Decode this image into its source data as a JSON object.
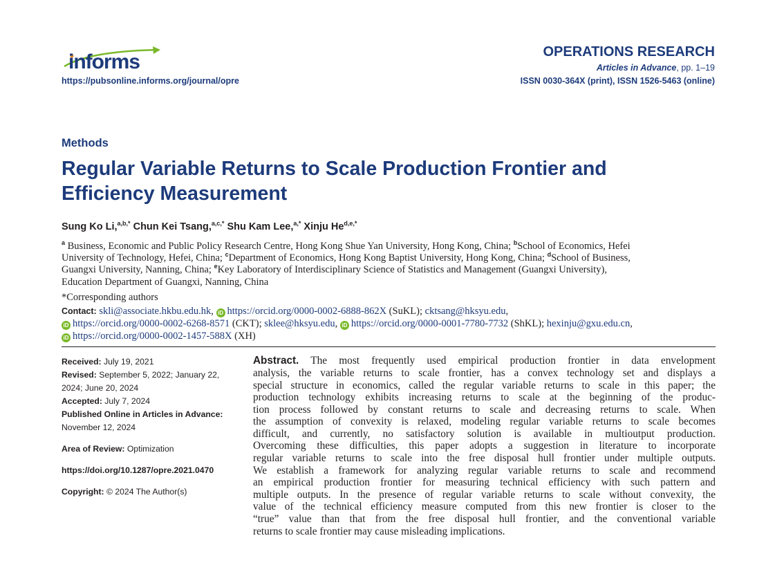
{
  "header": {
    "logo_text": "informs",
    "journal_url": "https://pubsonline.informs.org/journal/opre",
    "journal_name": "OPERATIONS RESEARCH",
    "articles_in_advance": "Articles in Advance",
    "pages": ", pp. 1–19",
    "issn": "ISSN 0030-364X (print), ISSN 1526-5463 (online)"
  },
  "colors": {
    "navy": "#1d3b7b",
    "orcid_green": "#7ab929",
    "logo_arrow": "#7ab929",
    "logo_dot": "#f08a24"
  },
  "article": {
    "section": "Methods",
    "title_line1": "Regular Variable Returns to Scale Production Frontier and",
    "title_line2": "Efficiency Measurement",
    "authors": [
      {
        "name": "Sung Ko Li,",
        "sup": "a,b,*"
      },
      {
        "name": "Chun Kei Tsang,",
        "sup": "a,c,*"
      },
      {
        "name": "Shu Kam Lee,",
        "sup": "a,*"
      },
      {
        "name": "Xinju He",
        "sup": "d,e,*"
      }
    ],
    "affiliations": {
      "a": "Business, Economic and Public Policy Research Centre, Hong Kong Shue Yan University, Hong Kong, China;",
      "b": "School of Economics, Hefei",
      "b2": "University of Technology, Hefei, China;",
      "c": "Department of Economics, Hong Kong Baptist University, Hong Kong, China;",
      "d": "School of Business,",
      "d2": "Guangxi University, Nanning, China;",
      "e": "Key Laboratory of Interdisciplinary Science of Statistics and Management (Guangxi University),",
      "e2": "Education Department of Guangxi, Nanning, China"
    },
    "corresponding": "*Corresponding authors",
    "contact": {
      "label": "Contact:",
      "email1": "skli@associate.hkbu.edu.hk",
      "orcid1": "https://orcid.org/0000-0002-6888-862X",
      "id1": " (SuKL); ",
      "email2": "cktsang@hksyu.edu",
      "orcid2": "https://orcid.org/0000-0002-6268-8571",
      "id2": " (CKT); ",
      "email3": "sklee@hksyu.edu",
      "orcid3": "https://orcid.org/0000-0001-7780-7732",
      "id3": " (ShKL); ",
      "email4": "hexinju@gxu.edu.cn",
      "orcid4": "https://orcid.org/0000-0002-1457-588X",
      "id4": " (XH)",
      "orcid_icon": "iD"
    }
  },
  "meta": {
    "received_label": "Received:",
    "received": " July 19, 2021",
    "revised_label": "Revised:",
    "revised": " September 5, 2022; January 22, 2024; June 20, 2024",
    "accepted_label": "Accepted:",
    "accepted": " July 7, 2024",
    "published_label": "Published Online in Articles in Advance:",
    "published": "November 12, 2024",
    "area_label": "Area of Review:",
    "area": " Optimization",
    "doi": "https://doi.org/10.1287/opre.2021.0470",
    "copyright_label": "Copyright:",
    "copyright": " © 2024 The Author(s)"
  },
  "abstract": {
    "label": "Abstract.",
    "lines": [
      " The most frequently used empirical production frontier in data envelopment",
      "analysis, the variable returns to scale frontier, has a convex technology set and displays a",
      "special structure in economics, called the regular variable returns to scale in this paper; the",
      "production technology exhibits increasing returns to scale at the beginning of the produc-",
      "tion process followed by constant returns to scale and decreasing returns to scale. When",
      "the assumption of convexity is relaxed, modeling regular variable returns to scale becomes",
      "difficult, and currently, no satisfactory solution is available in multioutput production.",
      "Overcoming these difficulties, this paper adopts a suggestion in literature to incorporate",
      "regular variable returns to scale into the free disposal hull frontier under multiple outputs.",
      "We establish a framework for analyzing regular variable returns to scale and recommend",
      "an empirical production frontier for measuring technical efficiency with such pattern and",
      "multiple outputs. In the presence of regular variable returns to scale without convexity, the",
      "value of the technical efficiency measure computed from this new frontier is closer to the",
      "“true” value than that from the free disposal hull frontier, and the conventional variable",
      "returns to scale frontier may cause misleading implications."
    ]
  }
}
